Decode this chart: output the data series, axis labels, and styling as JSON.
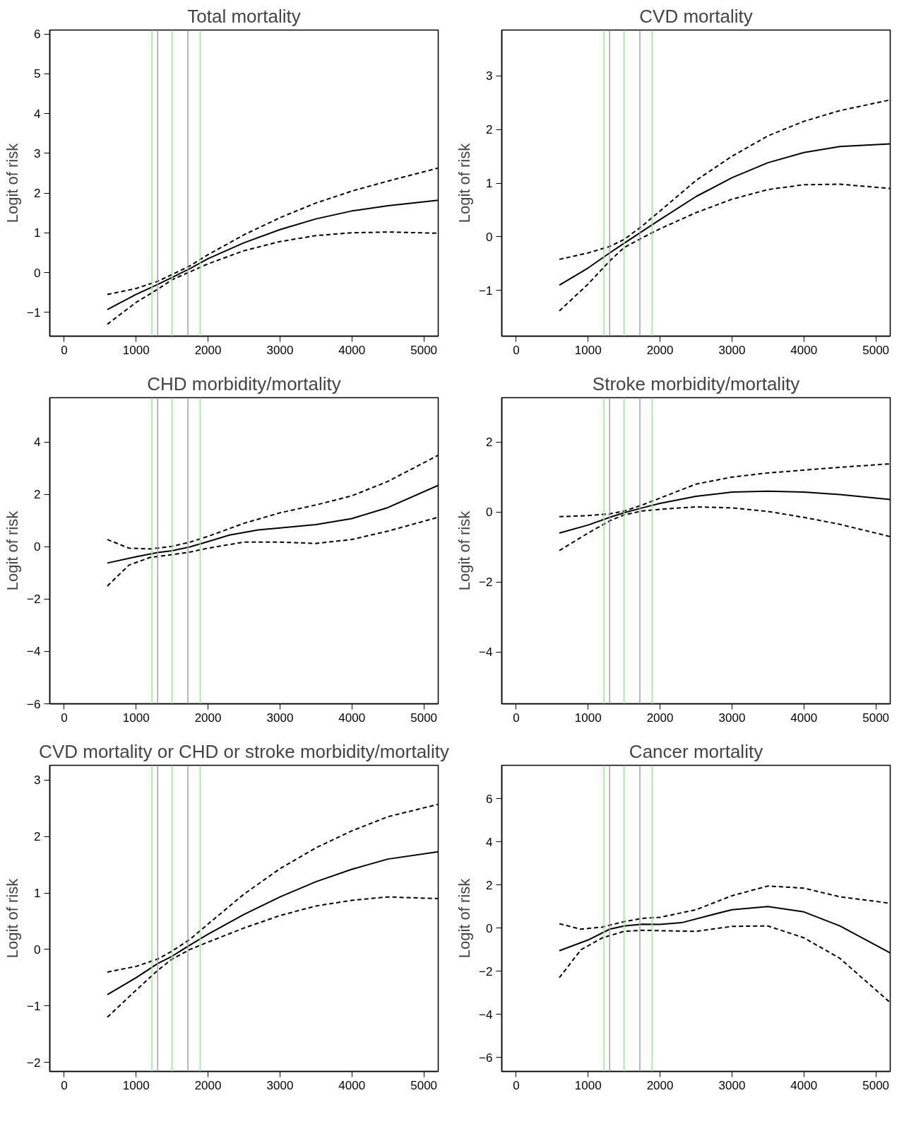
{
  "chart_data": [
    {
      "type": "line",
      "title": "Total mortality",
      "ylabel": "Logit of risk",
      "xlim": [
        -200,
        5200
      ],
      "ylim": [
        -1.6,
        6.1
      ],
      "xticks": [
        0,
        1000,
        2000,
        3000,
        4000,
        5000
      ],
      "yticks": [
        {
          "value": -1,
          "label": "−1"
        },
        0,
        1,
        2,
        3,
        4,
        5,
        6
      ],
      "series": [
        {
          "color": "#000000",
          "line_style": "solid",
          "x": [
            600,
            1000,
            1300,
            1500,
            1750,
            2000,
            2500,
            3000,
            3500,
            4000,
            4500,
            5200
          ],
          "values": [
            -0.93,
            -0.55,
            -0.3,
            -0.12,
            0.1,
            0.35,
            0.75,
            1.08,
            1.35,
            1.55,
            1.68,
            1.82
          ]
        },
        {
          "color": "#000000",
          "line_style": "dashed",
          "x": [
            600,
            1000,
            1300,
            1500,
            1750,
            2000,
            2500,
            3000,
            3500,
            4000,
            4500,
            5200
          ],
          "values": [
            -0.55,
            -0.4,
            -0.22,
            -0.05,
            0.17,
            0.45,
            0.95,
            1.38,
            1.75,
            2.05,
            2.3,
            2.63
          ]
        },
        {
          "color": "#000000",
          "line_style": "dashed",
          "x": [
            600,
            1000,
            1300,
            1500,
            1750,
            2000,
            2500,
            3000,
            3500,
            4000,
            4500,
            5200
          ],
          "values": [
            -1.3,
            -0.75,
            -0.42,
            -0.18,
            0.02,
            0.22,
            0.55,
            0.78,
            0.93,
            1.0,
            1.02,
            0.99
          ]
        }
      ],
      "ref_lines": [
        {
          "axis": "x",
          "value": 1220,
          "color": "#90ee90"
        },
        {
          "axis": "x",
          "value": 1300,
          "color": "#a0a0a0"
        },
        {
          "axis": "x",
          "value": 1500,
          "color": "#90ee90"
        },
        {
          "axis": "x",
          "value": 1720,
          "color": "#a0a0a0"
        },
        {
          "axis": "x",
          "value": 1890,
          "color": "#90ee90"
        }
      ]
    },
    {
      "type": "line",
      "title": "CVD mortality",
      "ylabel": "Logit of risk",
      "xlim": [
        -200,
        5200
      ],
      "ylim": [
        -1.85,
        3.85
      ],
      "xticks": [
        0,
        1000,
        2000,
        3000,
        4000,
        5000
      ],
      "yticks": [
        {
          "value": -1,
          "label": "−1"
        },
        0,
        1,
        2,
        3
      ],
      "series": [
        {
          "color": "#000000",
          "line_style": "solid",
          "x": [
            600,
            1000,
            1300,
            1500,
            1750,
            2000,
            2500,
            3000,
            3500,
            4000,
            4500,
            5200
          ],
          "values": [
            -0.9,
            -0.58,
            -0.3,
            -0.12,
            0.1,
            0.32,
            0.75,
            1.1,
            1.38,
            1.57,
            1.68,
            1.73
          ]
        },
        {
          "color": "#000000",
          "line_style": "dashed",
          "x": [
            600,
            1000,
            1300,
            1500,
            1750,
            2000,
            2500,
            3000,
            3500,
            4000,
            4500,
            5200
          ],
          "values": [
            -0.42,
            -0.3,
            -0.18,
            -0.05,
            0.2,
            0.48,
            1.05,
            1.5,
            1.88,
            2.15,
            2.35,
            2.55
          ]
        },
        {
          "color": "#000000",
          "line_style": "dashed",
          "x": [
            600,
            1000,
            1300,
            1500,
            1750,
            2000,
            2500,
            3000,
            3500,
            4000,
            4500,
            5200
          ],
          "values": [
            -1.38,
            -0.88,
            -0.45,
            -0.2,
            -0.02,
            0.15,
            0.45,
            0.7,
            0.88,
            0.97,
            0.98,
            0.9
          ]
        }
      ],
      "ref_lines": [
        {
          "axis": "x",
          "value": 1220,
          "color": "#90ee90"
        },
        {
          "axis": "x",
          "value": 1300,
          "color": "#a0a0a0"
        },
        {
          "axis": "x",
          "value": 1500,
          "color": "#90ee90"
        },
        {
          "axis": "x",
          "value": 1720,
          "color": "#a0a0a0"
        },
        {
          "axis": "x",
          "value": 1890,
          "color": "#90ee90"
        }
      ]
    },
    {
      "type": "line",
      "title": "CHD morbidity/mortality",
      "ylabel": "Logit of risk",
      "xlim": [
        -200,
        5200
      ],
      "ylim": [
        -6,
        5.7
      ],
      "xticks": [
        0,
        1000,
        2000,
        3000,
        4000,
        5000
      ],
      "yticks": [
        {
          "value": -6,
          "label": "−6"
        },
        {
          "value": -4,
          "label": "−4"
        },
        {
          "value": -2,
          "label": "−2"
        },
        0,
        2,
        4
      ],
      "series": [
        {
          "color": "#000000",
          "line_style": "solid",
          "x": [
            600,
            1000,
            1300,
            1500,
            1750,
            2000,
            2300,
            2700,
            3000,
            3500,
            4000,
            4500,
            5200
          ],
          "values": [
            -0.62,
            -0.38,
            -0.22,
            -0.15,
            0.0,
            0.2,
            0.45,
            0.65,
            0.72,
            0.85,
            1.08,
            1.5,
            2.35
          ]
        },
        {
          "color": "#000000",
          "line_style": "dashed",
          "x": [
            600,
            900,
            1200,
            1500,
            1750,
            2000,
            2500,
            3000,
            3500,
            4000,
            4500,
            5200
          ],
          "values": [
            0.28,
            -0.05,
            -0.08,
            0.02,
            0.18,
            0.4,
            0.9,
            1.3,
            1.6,
            1.95,
            2.5,
            3.5
          ]
        },
        {
          "color": "#000000",
          "line_style": "dashed",
          "x": [
            600,
            900,
            1200,
            1500,
            1750,
            2000,
            2500,
            3000,
            3500,
            4000,
            4500,
            5200
          ],
          "values": [
            -1.5,
            -0.7,
            -0.4,
            -0.3,
            -0.2,
            -0.05,
            0.18,
            0.18,
            0.13,
            0.28,
            0.6,
            1.13
          ]
        }
      ],
      "ref_lines": [
        {
          "axis": "x",
          "value": 1220,
          "color": "#90ee90"
        },
        {
          "axis": "x",
          "value": 1300,
          "color": "#a0a0a0"
        },
        {
          "axis": "x",
          "value": 1500,
          "color": "#90ee90"
        },
        {
          "axis": "x",
          "value": 1720,
          "color": "#a0a0a0"
        },
        {
          "axis": "x",
          "value": 1890,
          "color": "#90ee90"
        }
      ]
    },
    {
      "type": "line",
      "title": "Stroke morbidity/mortality",
      "ylabel": "Logit of risk",
      "xlim": [
        -200,
        5200
      ],
      "ylim": [
        -5.48,
        3.27
      ],
      "xticks": [
        0,
        1000,
        2000,
        3000,
        4000,
        5000
      ],
      "yticks": [
        {
          "value": -4,
          "label": "−4"
        },
        {
          "value": -2,
          "label": "−2"
        },
        0,
        2
      ],
      "series": [
        {
          "color": "#000000",
          "line_style": "solid",
          "x": [
            600,
            1000,
            1300,
            1500,
            1750,
            2000,
            2500,
            3000,
            3500,
            4000,
            4500,
            5200
          ],
          "values": [
            -0.6,
            -0.37,
            -0.15,
            -0.02,
            0.12,
            0.25,
            0.45,
            0.57,
            0.6,
            0.57,
            0.5,
            0.36
          ]
        },
        {
          "color": "#000000",
          "line_style": "dashed",
          "x": [
            600,
            1000,
            1300,
            1500,
            1750,
            2000,
            2500,
            3000,
            3500,
            4000,
            4500,
            5200
          ],
          "values": [
            -0.13,
            -0.1,
            -0.05,
            0.03,
            0.2,
            0.4,
            0.8,
            1.0,
            1.12,
            1.2,
            1.28,
            1.38
          ]
        },
        {
          "color": "#000000",
          "line_style": "dashed",
          "x": [
            600,
            1000,
            1300,
            1500,
            1750,
            2000,
            2500,
            3000,
            3500,
            4000,
            4500,
            5200
          ],
          "values": [
            -1.1,
            -0.6,
            -0.25,
            -0.08,
            0.03,
            0.08,
            0.15,
            0.12,
            0.02,
            -0.15,
            -0.35,
            -0.7
          ]
        }
      ],
      "ref_lines": [
        {
          "axis": "x",
          "value": 1220,
          "color": "#90ee90"
        },
        {
          "axis": "x",
          "value": 1300,
          "color": "#a0a0a0"
        },
        {
          "axis": "x",
          "value": 1500,
          "color": "#90ee90"
        },
        {
          "axis": "x",
          "value": 1720,
          "color": "#a0a0a0"
        },
        {
          "axis": "x",
          "value": 1890,
          "color": "#90ee90"
        }
      ]
    },
    {
      "type": "line",
      "title": "CVD mortality or CHD or stroke morbidity/mortality",
      "ylabel": "Logit of risk",
      "xlim": [
        -200,
        5200
      ],
      "ylim": [
        -2.16,
        3.26
      ],
      "xticks": [
        0,
        1000,
        2000,
        3000,
        4000,
        5000
      ],
      "yticks": [
        {
          "value": -2,
          "label": "−2"
        },
        {
          "value": -1,
          "label": "−1"
        },
        0,
        1,
        2,
        3
      ],
      "series": [
        {
          "color": "#000000",
          "line_style": "solid",
          "x": [
            600,
            1000,
            1300,
            1500,
            1750,
            2000,
            2500,
            3000,
            3500,
            4000,
            4500,
            5200
          ],
          "values": [
            -0.8,
            -0.5,
            -0.25,
            -0.12,
            0.08,
            0.27,
            0.62,
            0.93,
            1.2,
            1.42,
            1.6,
            1.73
          ]
        },
        {
          "color": "#000000",
          "line_style": "dashed",
          "x": [
            600,
            1000,
            1300,
            1500,
            1750,
            2000,
            2500,
            3000,
            3500,
            4000,
            4500,
            5200
          ],
          "values": [
            -0.4,
            -0.3,
            -0.17,
            -0.03,
            0.18,
            0.45,
            0.98,
            1.43,
            1.8,
            2.1,
            2.35,
            2.57
          ]
        },
        {
          "color": "#000000",
          "line_style": "dashed",
          "x": [
            600,
            1000,
            1300,
            1500,
            1750,
            2000,
            2500,
            3000,
            3500,
            4000,
            4500,
            5200
          ],
          "values": [
            -1.2,
            -0.72,
            -0.37,
            -0.17,
            0.0,
            0.13,
            0.38,
            0.6,
            0.77,
            0.87,
            0.93,
            0.9
          ]
        }
      ],
      "ref_lines": [
        {
          "axis": "x",
          "value": 1220,
          "color": "#90ee90"
        },
        {
          "axis": "x",
          "value": 1300,
          "color": "#a0a0a0"
        },
        {
          "axis": "x",
          "value": 1500,
          "color": "#90ee90"
        },
        {
          "axis": "x",
          "value": 1720,
          "color": "#a0a0a0"
        },
        {
          "axis": "x",
          "value": 1890,
          "color": "#90ee90"
        }
      ]
    },
    {
      "type": "line",
      "title": "Cancer mortality",
      "ylabel": "Logit of risk",
      "xlim": [
        -200,
        5200
      ],
      "ylim": [
        -6.64,
        7.54
      ],
      "xticks": [
        0,
        1000,
        2000,
        3000,
        4000,
        5000
      ],
      "yticks": [
        {
          "value": -6,
          "label": "−6"
        },
        {
          "value": -4,
          "label": "−4"
        },
        {
          "value": -2,
          "label": "−2"
        },
        0,
        2,
        4,
        6
      ],
      "series": [
        {
          "color": "#000000",
          "line_style": "solid",
          "x": [
            600,
            1000,
            1300,
            1500,
            1750,
            2000,
            2300,
            2700,
            3000,
            3500,
            4000,
            4500,
            5200
          ],
          "values": [
            -1.05,
            -0.55,
            -0.05,
            0.1,
            0.18,
            0.17,
            0.25,
            0.6,
            0.85,
            1.0,
            0.75,
            0.1,
            -1.15
          ]
        },
        {
          "color": "#000000",
          "line_style": "dashed",
          "x": [
            600,
            900,
            1200,
            1500,
            1750,
            2000,
            2500,
            3000,
            3500,
            4000,
            4500,
            5200
          ],
          "values": [
            0.2,
            -0.05,
            0.05,
            0.3,
            0.45,
            0.5,
            0.85,
            1.5,
            1.95,
            1.85,
            1.45,
            1.15
          ]
        },
        {
          "color": "#000000",
          "line_style": "dashed",
          "x": [
            600,
            900,
            1200,
            1500,
            1750,
            2000,
            2500,
            3000,
            3500,
            4000,
            4500,
            5200
          ],
          "values": [
            -2.3,
            -1.0,
            -0.45,
            -0.15,
            -0.1,
            -0.12,
            -0.15,
            0.08,
            0.1,
            -0.45,
            -1.4,
            -3.45
          ]
        }
      ],
      "ref_lines": [
        {
          "axis": "x",
          "value": 1220,
          "color": "#90ee90"
        },
        {
          "axis": "x",
          "value": 1300,
          "color": "#a0a0a0"
        },
        {
          "axis": "x",
          "value": 1500,
          "color": "#90ee90"
        },
        {
          "axis": "x",
          "value": 1720,
          "color": "#a0a0a0"
        },
        {
          "axis": "x",
          "value": 1890,
          "color": "#90ee90"
        }
      ]
    }
  ]
}
